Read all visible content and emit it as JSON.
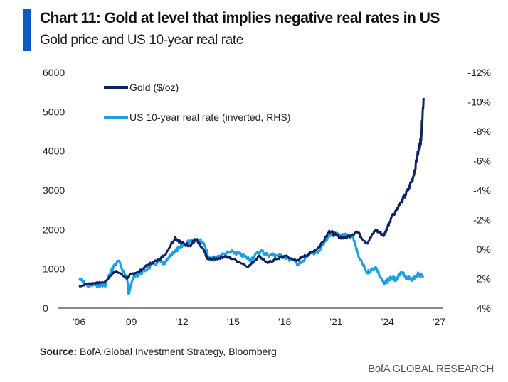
{
  "header": {
    "title": "Chart 11: Gold at level that implies negative real rates in US",
    "subtitle": "Gold price and US 10-year real rate"
  },
  "footer": {
    "source_label": "Source:",
    "source_text": " BofA Global Investment Strategy, Bloomberg",
    "brand": "BofA GLOBAL RESEARCH"
  },
  "chart_data": {
    "type": "line",
    "title": "Chart 11: Gold at level that implies negative real rates in US",
    "subtitle": "Gold price and US 10-year real rate",
    "legend_placement": "top-left",
    "grid": false,
    "x_ticks": [
      "'06",
      "'09",
      "'12",
      "'15",
      "'18",
      "'21",
      "'24",
      "'27"
    ],
    "x_tick_years": [
      2006,
      2009,
      2012,
      2015,
      2018,
      2021,
      2024,
      2027
    ],
    "xlim": [
      2006,
      2027
    ],
    "y_left": {
      "ticks": [
        "0",
        "1000",
        "2000",
        "3000",
        "4000",
        "5000",
        "6000"
      ],
      "lim": [
        0,
        6000
      ]
    },
    "y_right": {
      "ticks": [
        "-12%",
        "-10%",
        "-8%",
        "-6%",
        "-4%",
        "-2%",
        "0%",
        "2%",
        "4%"
      ],
      "lim": [
        -12,
        4
      ],
      "inverted": true
    },
    "series": [
      {
        "name": "Gold ($/oz)",
        "axis": "left",
        "color": "#0d2366",
        "x": [
          2006.0,
          2006.5,
          2007.0,
          2007.5,
          2008.0,
          2008.2,
          2008.8,
          2009.0,
          2009.5,
          2010.0,
          2010.5,
          2011.0,
          2011.6,
          2012.0,
          2012.5,
          2012.8,
          2013.3,
          2013.5,
          2014.0,
          2014.5,
          2015.0,
          2015.9,
          2016.5,
          2017.0,
          2017.5,
          2018.0,
          2018.7,
          2019.0,
          2019.5,
          2020.0,
          2020.6,
          2021.0,
          2021.5,
          2022.2,
          2022.8,
          2023.3,
          2023.8,
          2024.2,
          2024.8,
          2025.2,
          2025.5,
          2025.8,
          2025.95,
          2026.1
        ],
        "values": [
          550,
          620,
          640,
          660,
          900,
          950,
          750,
          860,
          930,
          1100,
          1200,
          1350,
          1800,
          1650,
          1600,
          1750,
          1450,
          1250,
          1250,
          1320,
          1250,
          1060,
          1330,
          1150,
          1250,
          1330,
          1200,
          1290,
          1400,
          1550,
          1970,
          1850,
          1780,
          1950,
          1650,
          1990,
          1850,
          2300,
          2700,
          3000,
          3350,
          4000,
          4300,
          5350
        ]
      },
      {
        "name": "US 10-year real rate (inverted, RHS)",
        "axis": "right",
        "color": "#1ba1e2",
        "x": [
          2006.0,
          2006.5,
          2007.0,
          2007.5,
          2008.0,
          2008.3,
          2008.8,
          2008.9,
          2009.2,
          2009.5,
          2010.0,
          2010.7,
          2011.0,
          2011.5,
          2011.9,
          2012.5,
          2012.9,
          2013.3,
          2013.6,
          2014.0,
          2014.5,
          2015.0,
          2015.5,
          2016.0,
          2016.6,
          2017.0,
          2017.5,
          2018.0,
          2018.8,
          2019.0,
          2019.5,
          2020.0,
          2020.3,
          2020.8,
          2021.0,
          2021.5,
          2022.0,
          2022.3,
          2022.8,
          2023.3,
          2023.8,
          2024.2,
          2024.5,
          2024.8,
          2025.2,
          2025.5,
          2025.8,
          2026.1
        ],
        "values": [
          2.0,
          2.5,
          2.4,
          2.5,
          1.2,
          0.8,
          2.0,
          3.0,
          1.8,
          1.7,
          1.3,
          0.8,
          1.0,
          0.2,
          -0.1,
          -0.6,
          -0.7,
          -0.4,
          0.7,
          0.6,
          0.3,
          0.2,
          0.4,
          0.7,
          0.1,
          0.4,
          0.4,
          0.5,
          1.0,
          0.9,
          0.3,
          0.1,
          -0.5,
          -1.0,
          -1.0,
          -1.0,
          -0.8,
          0.5,
          1.6,
          1.2,
          2.4,
          1.9,
          2.1,
          1.6,
          2.0,
          2.0,
          1.7,
          1.8
        ]
      }
    ]
  }
}
